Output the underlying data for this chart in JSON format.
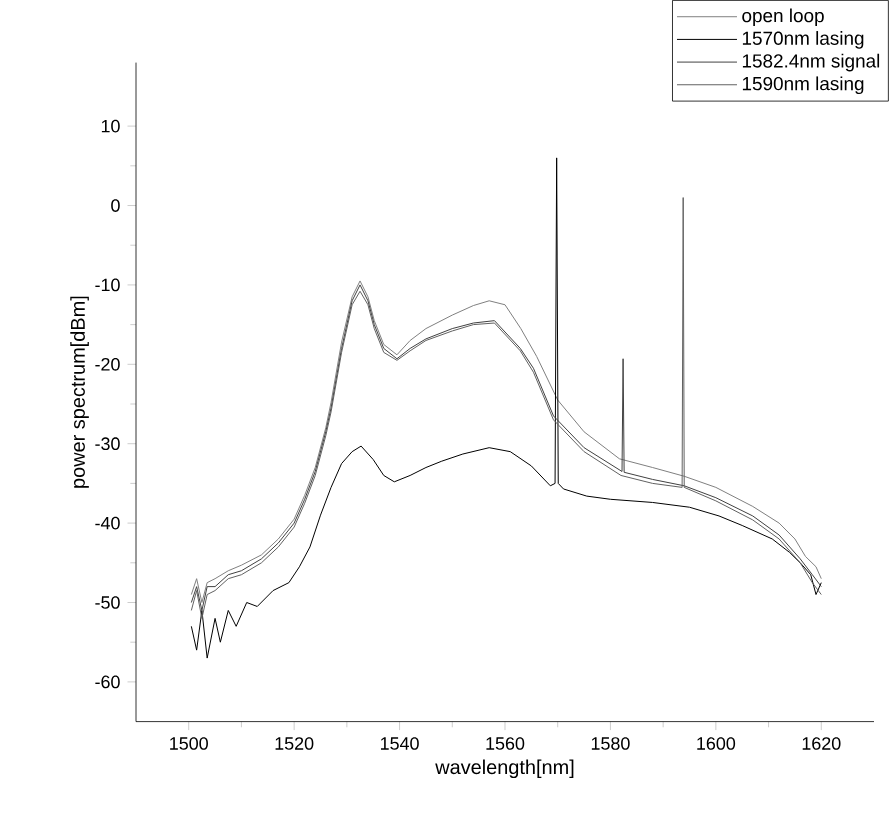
{
  "chart_data": {
    "type": "line",
    "xlabel": "wavelength[nm]",
    "ylabel": "power spectrum[dBm]",
    "xlim": [
      1490,
      1630
    ],
    "ylim": [
      -65,
      18
    ],
    "xticks": [
      1500,
      1520,
      1540,
      1560,
      1580,
      1600,
      1620
    ],
    "yticks": [
      -60,
      -50,
      -40,
      -30,
      -20,
      -10,
      0,
      10
    ],
    "grid": false,
    "legend": "top right",
    "series": [
      {
        "name": "open loop",
        "color": "#808080",
        "x": [
          1500.5,
          1501.5,
          1502.5,
          1503.5,
          1505,
          1507.5,
          1510,
          1513.8,
          1517,
          1520,
          1522,
          1524,
          1526,
          1527,
          1529,
          1531,
          1532.5,
          1534,
          1535.2,
          1537,
          1539.5,
          1542,
          1545,
          1550,
          1554,
          1557,
          1560,
          1563,
          1566,
          1570,
          1575,
          1581.7,
          1588,
          1594,
          1600,
          1607,
          1612,
          1615,
          1617,
          1619,
          1620
        ],
        "values": [
          -49,
          -47,
          -50,
          -47.5,
          -47,
          -46,
          -45.3,
          -44,
          -42,
          -39.5,
          -36.5,
          -33,
          -28,
          -24.8,
          -17.2,
          -11.5,
          -9.5,
          -11.5,
          -14.5,
          -17.5,
          -18.8,
          -17,
          -15.5,
          -13.8,
          -12.6,
          -12,
          -12.5,
          -15.5,
          -19,
          -24.5,
          -28.5,
          -31.9,
          -33,
          -34.1,
          -35.5,
          -37.9,
          -40,
          -42,
          -44.2,
          -45.5,
          -47
        ]
      },
      {
        "name": "1570nm lasing",
        "color": "#000000",
        "x": [
          1500.5,
          1501.5,
          1502.5,
          1503.5,
          1505,
          1506,
          1507.5,
          1509,
          1511,
          1513,
          1516,
          1519,
          1521,
          1523,
          1525,
          1527,
          1529,
          1531,
          1532.7,
          1535,
          1537,
          1539,
          1542,
          1545,
          1548,
          1552,
          1557,
          1561,
          1565,
          1568.6,
          1569.5,
          1569.8,
          1570.1,
          1571.1,
          1575.5,
          1580,
          1588,
          1595,
          1600.6,
          1605,
          1610.7,
          1614,
          1616,
          1618,
          1619,
          1620
        ],
        "values": [
          -53,
          -56,
          -51,
          -57,
          -52,
          -55,
          -51,
          -53,
          -50,
          -50.5,
          -48.5,
          -47.5,
          -45.5,
          -43,
          -39,
          -35.5,
          -32.5,
          -31,
          -30.3,
          -32,
          -34,
          -34.8,
          -34,
          -33,
          -32.2,
          -31.3,
          -30.5,
          -31,
          -32.8,
          -35.3,
          -35,
          6,
          -35,
          -35.7,
          -36.6,
          -37,
          -37.4,
          -38,
          -39.1,
          -40.3,
          -42,
          -43.7,
          -45,
          -46.5,
          -49,
          -47.5
        ]
      },
      {
        "name": "1582.4nm signal",
        "color": "#404040",
        "x": [
          1500.5,
          1501.5,
          1502.5,
          1503.5,
          1505,
          1507.5,
          1510,
          1513.8,
          1517,
          1520,
          1522,
          1524,
          1526,
          1527,
          1529,
          1531,
          1532.5,
          1534,
          1535.2,
          1537,
          1539.5,
          1542,
          1545,
          1550,
          1554,
          1558,
          1562.9,
          1565.4,
          1569.2,
          1575,
          1582.2,
          1582.4,
          1582.6,
          1588,
          1594,
          1600,
          1607,
          1612,
          1616,
          1618.3,
          1620
        ],
        "values": [
          -50,
          -48,
          -51,
          -48,
          -48,
          -46.5,
          -46,
          -44.5,
          -42.5,
          -40,
          -37,
          -33.5,
          -28.5,
          -25.5,
          -18,
          -12,
          -10,
          -12,
          -15,
          -18,
          -19.3,
          -18,
          -16.8,
          -15.5,
          -14.8,
          -14.5,
          -18,
          -20.5,
          -26.5,
          -30.5,
          -33.5,
          -19.3,
          -33.6,
          -34.5,
          -35.3,
          -36.8,
          -39.1,
          -41.5,
          -44.5,
          -46.5,
          -48
        ]
      },
      {
        "name": "1590nm lasing",
        "color": "#606060",
        "x": [
          1500.5,
          1501.5,
          1502.5,
          1503.5,
          1505,
          1507.5,
          1510,
          1513.8,
          1517,
          1520,
          1522,
          1524,
          1526,
          1527,
          1529,
          1531,
          1532.5,
          1534,
          1535.2,
          1537,
          1539.5,
          1542,
          1545,
          1550,
          1554,
          1558,
          1562.9,
          1565.4,
          1569.2,
          1575,
          1582,
          1588,
          1593.6,
          1593.8,
          1594,
          1600,
          1607,
          1612,
          1616,
          1618.3,
          1620
        ],
        "values": [
          -51,
          -48.5,
          -52,
          -49,
          -48.5,
          -47,
          -46.5,
          -45,
          -43,
          -40.5,
          -37.5,
          -34,
          -29,
          -26,
          -18.5,
          -12.5,
          -10.8,
          -12.5,
          -15.5,
          -18.5,
          -19.5,
          -18.3,
          -17,
          -15.8,
          -15,
          -14.8,
          -18.3,
          -21,
          -27,
          -31,
          -34,
          -35,
          -35.5,
          1,
          -35.5,
          -37.2,
          -39.6,
          -42,
          -45,
          -47.5,
          -49
        ]
      }
    ]
  }
}
